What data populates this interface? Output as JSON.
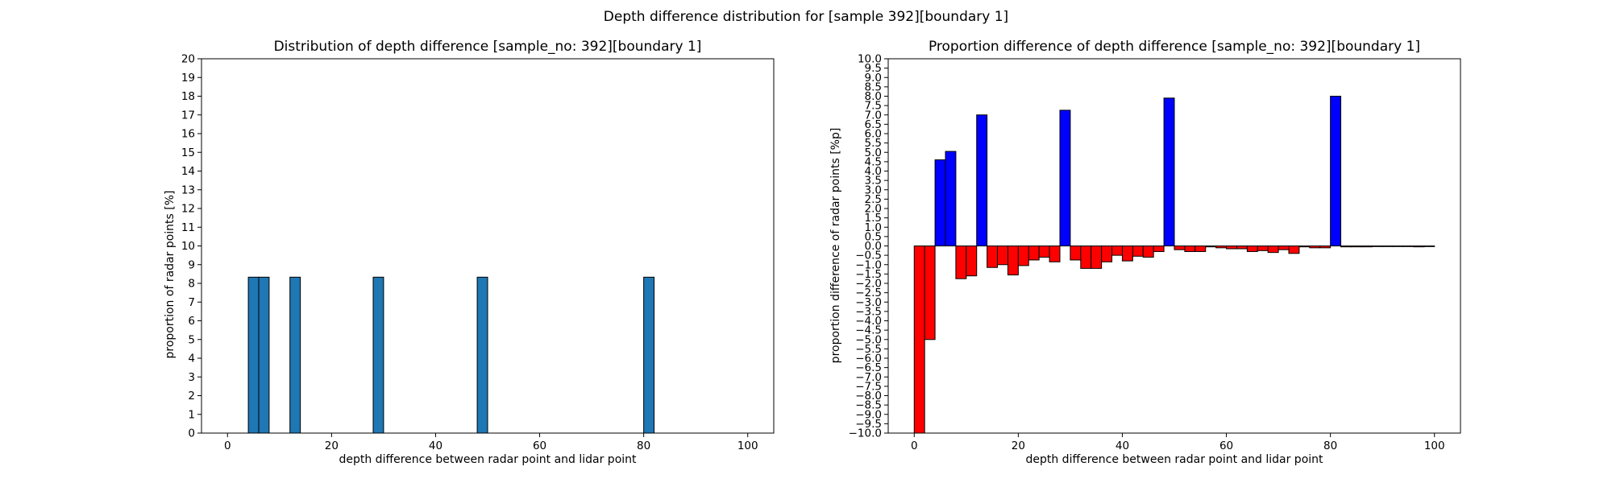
{
  "figure": {
    "suptitle": "Depth difference distribution for [sample 392][boundary 1]"
  },
  "chart_data": [
    {
      "type": "bar",
      "title": "Distribution of depth difference [sample_no: 392][boundary 1]",
      "xlabel": "depth difference between radar point and lidar point",
      "ylabel": "proportion of radar points [%]",
      "xlim": [
        -5,
        105
      ],
      "ylim": [
        0,
        20
      ],
      "xticks": [
        0,
        20,
        40,
        60,
        80,
        100
      ],
      "yticks": [
        0,
        1,
        2,
        3,
        4,
        5,
        6,
        7,
        8,
        9,
        10,
        11,
        12,
        13,
        14,
        15,
        16,
        17,
        18,
        19,
        20
      ],
      "bin_width": 2,
      "bin_starts": [
        4,
        6,
        12,
        28,
        48,
        80
      ],
      "values": [
        8.33,
        8.33,
        8.33,
        8.33,
        8.33,
        8.33
      ],
      "colors": {
        "bar": "#1f77b4",
        "edge": "#000000"
      },
      "grid": false,
      "legend": "none"
    },
    {
      "type": "bar",
      "title": "Proportion difference of depth difference [sample_no: 392][boundary 1]",
      "xlabel": "depth difference between radar point and lidar point",
      "ylabel": "proportion difference of radar points [%p]",
      "xlim": [
        -5,
        105
      ],
      "ylim": [
        -10,
        10
      ],
      "xticks": [
        0,
        20,
        40,
        60,
        80,
        100
      ],
      "yticks": [
        -10.0,
        -9.5,
        -9.0,
        -8.5,
        -8.0,
        -7.5,
        -7.0,
        -6.5,
        -6.0,
        -5.5,
        -5.0,
        -4.5,
        -4.0,
        -3.5,
        -3.0,
        -2.5,
        -2.0,
        -1.5,
        -1.0,
        -0.5,
        0.0,
        0.5,
        1.0,
        1.5,
        2.0,
        2.5,
        3.0,
        3.5,
        4.0,
        4.5,
        5.0,
        5.5,
        6.0,
        6.5,
        7.0,
        7.5,
        8.0,
        8.5,
        9.0,
        9.5,
        10.0
      ],
      "bin_width": 2,
      "bin_start": 0,
      "values": [
        -10.0,
        -5.0,
        4.6,
        5.05,
        -1.75,
        -1.6,
        7.0,
        -1.15,
        -1.0,
        -1.55,
        -1.05,
        -0.75,
        -0.6,
        -0.85,
        7.25,
        -0.75,
        -1.2,
        -1.2,
        -0.85,
        -0.5,
        -0.8,
        -0.55,
        -0.6,
        -0.3,
        7.9,
        -0.2,
        -0.3,
        -0.3,
        -0.05,
        -0.1,
        -0.15,
        -0.15,
        -0.3,
        -0.25,
        -0.35,
        -0.2,
        -0.4,
        -0.05,
        -0.1,
        -0.1,
        8.0,
        -0.05,
        -0.05,
        -0.05,
        0.0,
        0.0,
        0.0,
        0.0,
        -0.05,
        0.0
      ],
      "colors": {
        "positive": "#0000ff",
        "negative": "#ff0000",
        "edge": "#000000"
      },
      "grid": false,
      "legend": "none"
    }
  ]
}
